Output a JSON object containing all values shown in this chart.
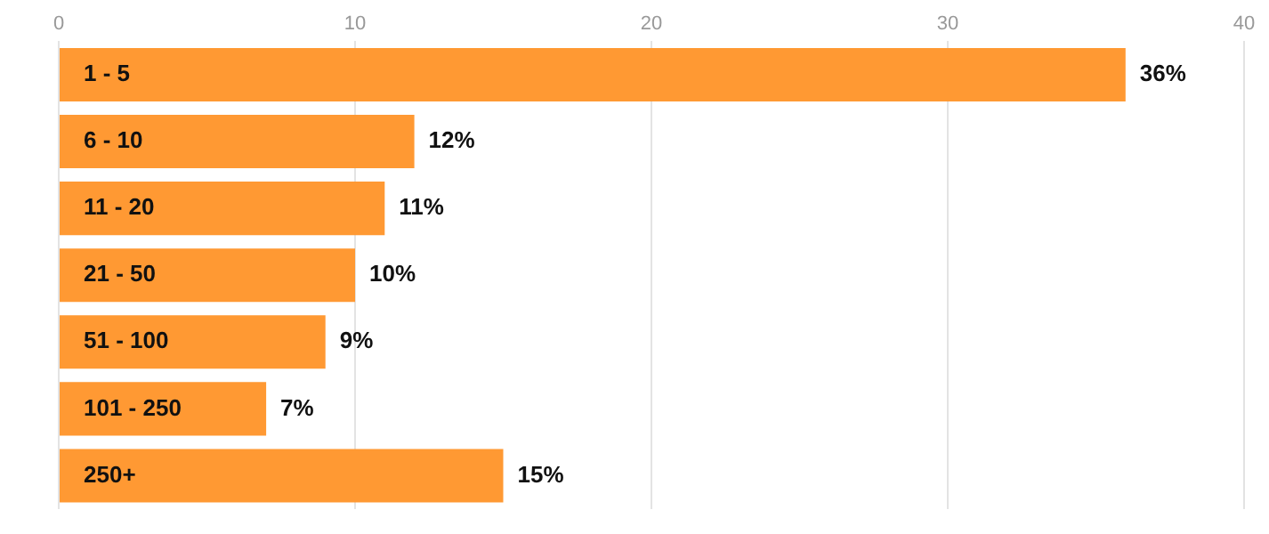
{
  "chart_data": {
    "type": "bar",
    "orientation": "horizontal",
    "categories": [
      "1 - 5",
      "6 - 10",
      "11 - 20",
      "21 - 50",
      "51 - 100",
      "101 - 250",
      "250+"
    ],
    "values": [
      36,
      12,
      11,
      10,
      9,
      7,
      15
    ],
    "value_labels": [
      "36%",
      "12%",
      "11%",
      "10%",
      "9%",
      "7%",
      "15%"
    ],
    "color": "#ff9933",
    "xlim": [
      0,
      40
    ],
    "xticks": [
      0,
      10,
      20,
      30,
      40
    ],
    "grid": "x"
  }
}
